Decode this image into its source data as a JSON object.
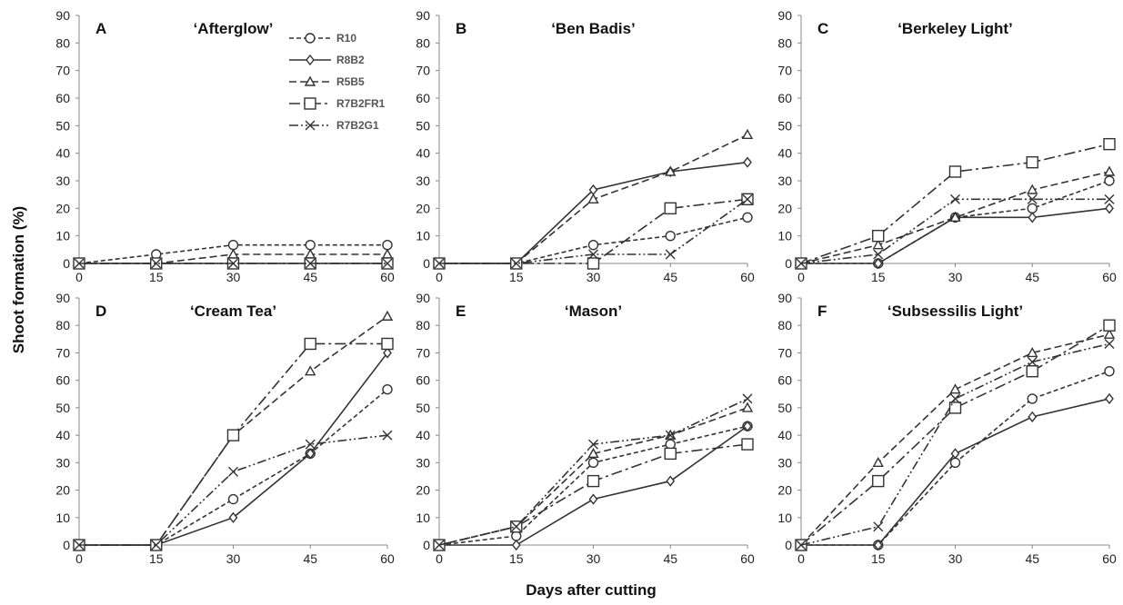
{
  "chart_data": {
    "type": "line",
    "ylabel": "Shoot formation (%)",
    "xlabel": "Days after cutting",
    "x": [
      0,
      15,
      30,
      45,
      60
    ],
    "xticks": [
      "0",
      "15",
      "30",
      "45",
      "60"
    ],
    "ylim": [
      0,
      90
    ],
    "yticks": [
      "0",
      "10",
      "20",
      "30",
      "40",
      "50",
      "60",
      "70",
      "80",
      "90"
    ],
    "grid": false,
    "legend": {
      "placement": "inside panel B, left",
      "entries": [
        "R10",
        "R8B2",
        "R5B5",
        "R7B2FR1",
        "R7B2G1"
      ]
    },
    "series_styles": {
      "R10": {
        "marker": "circle",
        "dash": "dashed-short"
      },
      "R8B2": {
        "marker": "diamond",
        "dash": "solid"
      },
      "R5B5": {
        "marker": "triangle",
        "dash": "dashed"
      },
      "R7B2FR1": {
        "marker": "square",
        "dash": "dash-dot"
      },
      "R7B2G1": {
        "marker": "x",
        "dash": "dash-dot-dot"
      }
    },
    "line_color": "#333333",
    "panels": [
      {
        "label": "A",
        "title": "‘Afterglow’",
        "series": [
          {
            "name": "R10",
            "values": [
              0,
              3.3,
              6.7,
              6.7,
              6.7
            ]
          },
          {
            "name": "R8B2",
            "values": [
              0,
              0,
              0,
              0,
              0
            ]
          },
          {
            "name": "R5B5",
            "values": [
              0,
              0,
              3.3,
              3.3,
              3.3
            ]
          },
          {
            "name": "R7B2FR1",
            "values": [
              0,
              0,
              0,
              0,
              0
            ]
          },
          {
            "name": "R7B2G1",
            "values": [
              0,
              0,
              0,
              0,
              0
            ]
          }
        ]
      },
      {
        "label": "B",
        "title": "‘Ben Badis’",
        "series": [
          {
            "name": "R10",
            "values": [
              0,
              0,
              6.7,
              10,
              16.7
            ]
          },
          {
            "name": "R8B2",
            "values": [
              0,
              0,
              26.7,
              33.3,
              36.7
            ]
          },
          {
            "name": "R5B5",
            "values": [
              0,
              0,
              23.3,
              33.3,
              46.7
            ]
          },
          {
            "name": "R7B2FR1",
            "values": [
              0,
              0,
              0,
              20,
              23.3
            ]
          },
          {
            "name": "R7B2G1",
            "values": [
              0,
              0,
              3.3,
              3.3,
              23.3
            ]
          }
        ]
      },
      {
        "label": "C",
        "title": "‘Berkeley Light’",
        "series": [
          {
            "name": "R10",
            "values": [
              0,
              0,
              16.7,
              20,
              30
            ]
          },
          {
            "name": "R8B2",
            "values": [
              0,
              0,
              16.7,
              16.7,
              20
            ]
          },
          {
            "name": "R5B5",
            "values": [
              0,
              6.7,
              16.7,
              26.7,
              33.3
            ]
          },
          {
            "name": "R7B2FR1",
            "values": [
              0,
              10,
              33.3,
              36.7,
              43.3
            ]
          },
          {
            "name": "R7B2G1",
            "values": [
              0,
              3.3,
              23.3,
              23.3,
              23.3
            ]
          }
        ]
      },
      {
        "label": "D",
        "title": "‘Cream Tea’",
        "series": [
          {
            "name": "R10",
            "values": [
              0,
              0,
              16.7,
              33.3,
              56.7
            ]
          },
          {
            "name": "R8B2",
            "values": [
              0,
              0,
              10,
              33.3,
              70
            ]
          },
          {
            "name": "R5B5",
            "values": [
              0,
              0,
              40,
              63.3,
              83.3
            ]
          },
          {
            "name": "R7B2FR1",
            "values": [
              0,
              0,
              40,
              73.3,
              73.3
            ]
          },
          {
            "name": "R7B2G1",
            "values": [
              0,
              0,
              26.7,
              36.7,
              40
            ]
          }
        ]
      },
      {
        "label": "E",
        "title": "‘Mason’",
        "series": [
          {
            "name": "R10",
            "values": [
              0,
              3.3,
              30,
              36.7,
              43.3
            ]
          },
          {
            "name": "R8B2",
            "values": [
              0,
              0,
              16.7,
              23.3,
              43.3
            ]
          },
          {
            "name": "R5B5",
            "values": [
              0,
              6.7,
              33.3,
              40,
              50
            ]
          },
          {
            "name": "R7B2FR1",
            "values": [
              0,
              6.7,
              23.3,
              33.3,
              36.7
            ]
          },
          {
            "name": "R7B2G1",
            "values": [
              0,
              6.7,
              36.7,
              40,
              53.3
            ]
          }
        ]
      },
      {
        "label": "F",
        "title": "‘Subsessilis Light’",
        "series": [
          {
            "name": "R10",
            "values": [
              0,
              0,
              30,
              53.3,
              63.3
            ]
          },
          {
            "name": "R8B2",
            "values": [
              0,
              0,
              33.3,
              46.7,
              53.3
            ]
          },
          {
            "name": "R5B5",
            "values": [
              0,
              30,
              56.7,
              70,
              76.7
            ]
          },
          {
            "name": "R7B2FR1",
            "values": [
              0,
              23.3,
              50,
              63.3,
              80
            ]
          },
          {
            "name": "R7B2G1",
            "values": [
              0,
              6.7,
              53.3,
              66.7,
              73.3
            ]
          }
        ]
      }
    ]
  }
}
